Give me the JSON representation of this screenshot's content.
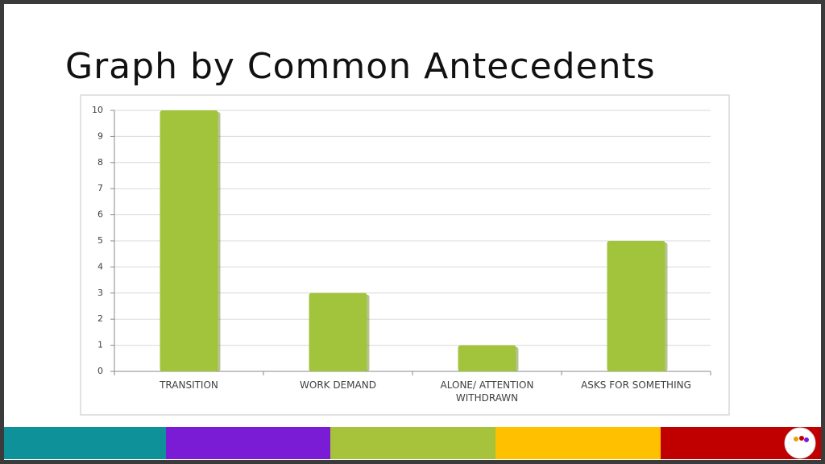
{
  "chart_data": {
    "type": "bar",
    "title": "Graph by Common Antecedents",
    "categories": [
      "TRANSITION",
      "WORK DEMAND",
      "ALONE/ ATTENTION\nWITHDRAWN",
      "ASKS FOR SOMETHING"
    ],
    "values": [
      10,
      3,
      1,
      5
    ],
    "color": "#a2c43c",
    "ylim": [
      0,
      10
    ],
    "yticks": [
      0,
      1,
      2,
      3,
      4,
      5,
      6,
      7,
      8,
      9,
      10
    ],
    "grid": true
  }
}
